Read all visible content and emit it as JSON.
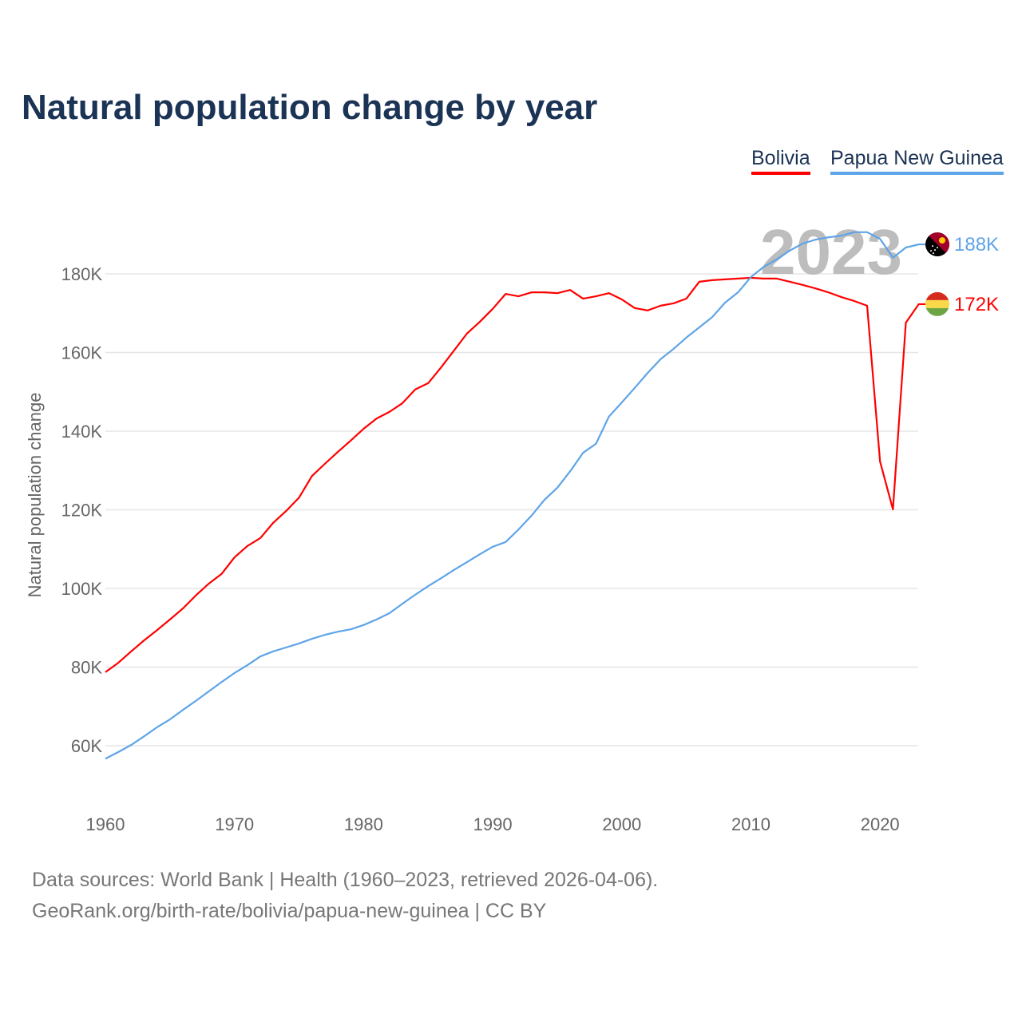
{
  "title": "Natural population change by year",
  "footer": {
    "line1": "Data sources: World Bank | Health (1960–2023, retrieved 2026-04-06).",
    "line2": "GeoRank.org/birth-rate/bolivia/papua-new-guinea | CC BY"
  },
  "chart_data": {
    "type": "line",
    "title": "Natural population change by year",
    "ylabel": "Natural population change",
    "xlabel": "",
    "year_watermark": "2023",
    "x_ticks": [
      "1960",
      "1970",
      "1980",
      "1990",
      "2000",
      "2010",
      "2020"
    ],
    "y_ticks": [
      "60K",
      "80K",
      "100K",
      "120K",
      "140K",
      "160K",
      "180K"
    ],
    "y_tick_values": [
      60,
      80,
      100,
      120,
      140,
      160,
      180
    ],
    "xlim": [
      1960,
      2023
    ],
    "legend": "top-right",
    "grid": true,
    "x": [
      1960,
      1961,
      1962,
      1963,
      1964,
      1965,
      1966,
      1967,
      1968,
      1969,
      1970,
      1971,
      1972,
      1973,
      1974,
      1975,
      1976,
      1977,
      1978,
      1979,
      1980,
      1981,
      1982,
      1983,
      1984,
      1985,
      1986,
      1987,
      1988,
      1989,
      1990,
      1991,
      1992,
      1993,
      1994,
      1995,
      1996,
      1997,
      1998,
      1999,
      2000,
      2001,
      2002,
      2003,
      2004,
      2005,
      2006,
      2007,
      2008,
      2009,
      2010,
      2011,
      2012,
      2013,
      2014,
      2015,
      2016,
      2017,
      2018,
      2019,
      2020,
      2021,
      2022,
      2023
    ],
    "series": [
      {
        "name": "Bolivia",
        "color": "#ff0000",
        "end_label": "172K",
        "flag": "bolivia-flag",
        "values": [
          78.7,
          81.1,
          84.0,
          86.8,
          89.4,
          92.1,
          94.9,
          98.2,
          101.2,
          103.7,
          107.9,
          110.8,
          112.8,
          116.7,
          119.7,
          123.1,
          128.6,
          131.7,
          134.7,
          137.6,
          140.6,
          143.2,
          144.9,
          147.1,
          150.6,
          152.2,
          156.2,
          160.5,
          164.8,
          167.8,
          171.1,
          174.9,
          174.3,
          175.3,
          175.3,
          175.1,
          175.9,
          173.7,
          174.3,
          175.1,
          173.5,
          171.3,
          170.7,
          171.9,
          172.5,
          173.7,
          178.0,
          178.4,
          178.6,
          178.8,
          179.0,
          178.8,
          178.8,
          178.0,
          177.2,
          176.3,
          175.3,
          174.1,
          173.1,
          171.9,
          132.3,
          120.1,
          167.6,
          172.3
        ]
      },
      {
        "name": "Papua New Guinea",
        "color": "#5ea4e8",
        "end_label": "188K",
        "flag": "papua-new-guinea-flag",
        "values": [
          56.7,
          58.4,
          60.2,
          62.4,
          64.7,
          66.7,
          69.1,
          71.4,
          73.8,
          76.2,
          78.5,
          80.5,
          82.7,
          84.0,
          85.0,
          86.0,
          87.2,
          88.2,
          89.0,
          89.6,
          90.7,
          92.1,
          93.7,
          96.1,
          98.4,
          100.6,
          102.6,
          104.7,
          106.7,
          108.7,
          110.6,
          111.8,
          115.0,
          118.5,
          122.5,
          125.6,
          129.8,
          134.5,
          136.8,
          143.7,
          147.3,
          151.0,
          154.8,
          158.3,
          160.9,
          163.8,
          166.4,
          169.0,
          172.7,
          175.3,
          179.2,
          181.8,
          183.7,
          185.9,
          187.7,
          188.7,
          189.3,
          189.7,
          190.6,
          190.6,
          188.9,
          184.1,
          186.7,
          187.5
        ]
      }
    ]
  }
}
